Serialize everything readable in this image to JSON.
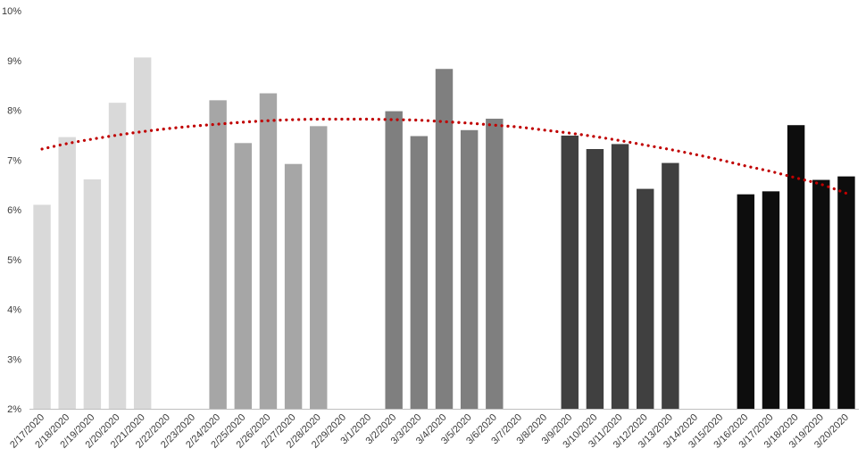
{
  "chart_data": {
    "type": "bar",
    "title": "",
    "xlabel": "",
    "ylabel": "",
    "ylim": [
      2,
      10
    ],
    "y_ticks": [
      2,
      3,
      4,
      5,
      6,
      7,
      8,
      9,
      10
    ],
    "y_tick_suffix": "%",
    "grid": false,
    "legend": "none",
    "categories": [
      "2/17/2020",
      "2/18/2020",
      "2/19/2020",
      "2/20/2020",
      "2/21/2020",
      "2/22/2020",
      "2/23/2020",
      "2/24/2020",
      "2/25/2020",
      "2/26/2020",
      "2/27/2020",
      "2/28/2020",
      "2/29/2020",
      "3/1/2020",
      "3/2/2020",
      "3/3/2020",
      "3/4/2020",
      "3/5/2020",
      "3/6/2020",
      "3/7/2020",
      "3/8/2020",
      "3/9/2020",
      "3/10/2020",
      "3/11/2020",
      "3/12/2020",
      "3/13/2020",
      "3/14/2020",
      "3/15/2020",
      "3/16/2020",
      "3/17/2020",
      "3/18/2020",
      "3/19/2020",
      "3/20/2020"
    ],
    "values": [
      6.1,
      7.46,
      6.61,
      8.15,
      9.06,
      null,
      null,
      8.2,
      7.34,
      8.34,
      6.92,
      7.68,
      null,
      null,
      7.98,
      7.48,
      8.83,
      7.6,
      7.83,
      null,
      null,
      7.49,
      7.22,
      7.32,
      6.42,
      6.94,
      null,
      null,
      6.31,
      6.37,
      7.7,
      6.6,
      6.67
    ],
    "bar_colors": [
      "#d9d9d9",
      "#d9d9d9",
      "#d9d9d9",
      "#d9d9d9",
      "#d9d9d9",
      "#d9d9d9",
      "#d9d9d9",
      "#a6a6a6",
      "#a6a6a6",
      "#a6a6a6",
      "#a6a6a6",
      "#a6a6a6",
      "#a6a6a6",
      "#a6a6a6",
      "#7f7f7f",
      "#7f7f7f",
      "#7f7f7f",
      "#7f7f7f",
      "#7f7f7f",
      "#7f7f7f",
      "#7f7f7f",
      "#404040",
      "#404040",
      "#404040",
      "#404040",
      "#404040",
      "#404040",
      "#404040",
      "#0d0d0d",
      "#0d0d0d",
      "#0d0d0d",
      "#0d0d0d",
      "#0d0d0d"
    ],
    "trendline": {
      "type": "polynomial",
      "color": "#c00000",
      "style": "dotted",
      "values": [
        7.22,
        7.33,
        7.42,
        7.5,
        7.57,
        7.63,
        7.68,
        7.72,
        7.76,
        7.79,
        7.81,
        7.82,
        7.82,
        7.82,
        7.81,
        7.8,
        7.77,
        7.74,
        7.7,
        7.66,
        7.6,
        7.54,
        7.47,
        7.39,
        7.3,
        7.21,
        7.11,
        7.0,
        6.88,
        6.77,
        6.64,
        6.51,
        6.33
      ]
    }
  }
}
